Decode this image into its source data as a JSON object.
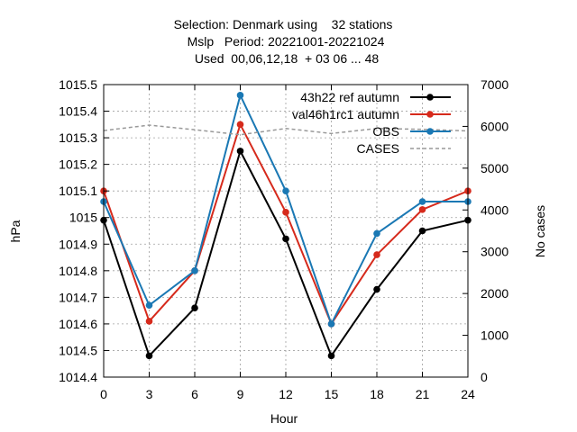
{
  "chart_data": {
    "type": "line",
    "title_lines": [
      "Selection: Denmark using    32 stations",
      "Mslp   Period: 20221001-20221024",
      "Used  00,06,12,18  + 03 06 ... 48"
    ],
    "xlabel": "Hour",
    "ylabel": "hPa",
    "y2label": "No cases",
    "x": [
      0,
      3,
      6,
      9,
      12,
      15,
      18,
      21,
      24
    ],
    "xlim": [
      0,
      24
    ],
    "ylim": [
      1014.4,
      1015.5
    ],
    "y2lim": [
      0,
      7000
    ],
    "xticks": [
      "0",
      "3",
      "6",
      "9",
      "12",
      "15",
      "18",
      "21",
      "24"
    ],
    "yticks": [
      "1014.4",
      "1014.5",
      "1014.6",
      "1014.7",
      "1014.8",
      "1014.9",
      "1015",
      "1015.1",
      "1015.2",
      "1015.3",
      "1015.4",
      "1015.5"
    ],
    "y2ticks": [
      "0",
      "1000",
      "2000",
      "3000",
      "4000",
      "5000",
      "6000",
      "7000"
    ],
    "grid": true,
    "legend_position": "top-right",
    "series": [
      {
        "name": "43h22_ref_autumn",
        "legend_label": "43h22 ref autumn",
        "color": "#000000",
        "axis": "y",
        "dash": false,
        "marker": true,
        "values": [
          1014.99,
          1014.48,
          1014.66,
          1015.25,
          1014.92,
          1014.48,
          1014.73,
          1014.95,
          1014.99
        ]
      },
      {
        "name": "val46h1rc1_autumn",
        "legend_label": "val46h1rc1 autumn",
        "color": "#d62a1c",
        "axis": "y",
        "dash": false,
        "marker": true,
        "values": [
          1015.1,
          1014.61,
          1014.8,
          1015.35,
          1015.02,
          1014.6,
          1014.86,
          1015.03,
          1015.1
        ]
      },
      {
        "name": "OBS",
        "legend_label": "OBS",
        "color": "#1a78b4",
        "axis": "y",
        "dash": false,
        "marker": true,
        "values": [
          1015.06,
          1014.67,
          1014.8,
          1015.46,
          1015.1,
          1014.6,
          1014.94,
          1015.06,
          1015.06
        ]
      },
      {
        "name": "CASES",
        "legend_label": "CASES",
        "color": "#999999",
        "axis": "y2",
        "dash": true,
        "marker": false,
        "values": [
          5900,
          6030,
          5920,
          5800,
          5950,
          5830,
          5950,
          5930,
          5890
        ]
      }
    ]
  }
}
